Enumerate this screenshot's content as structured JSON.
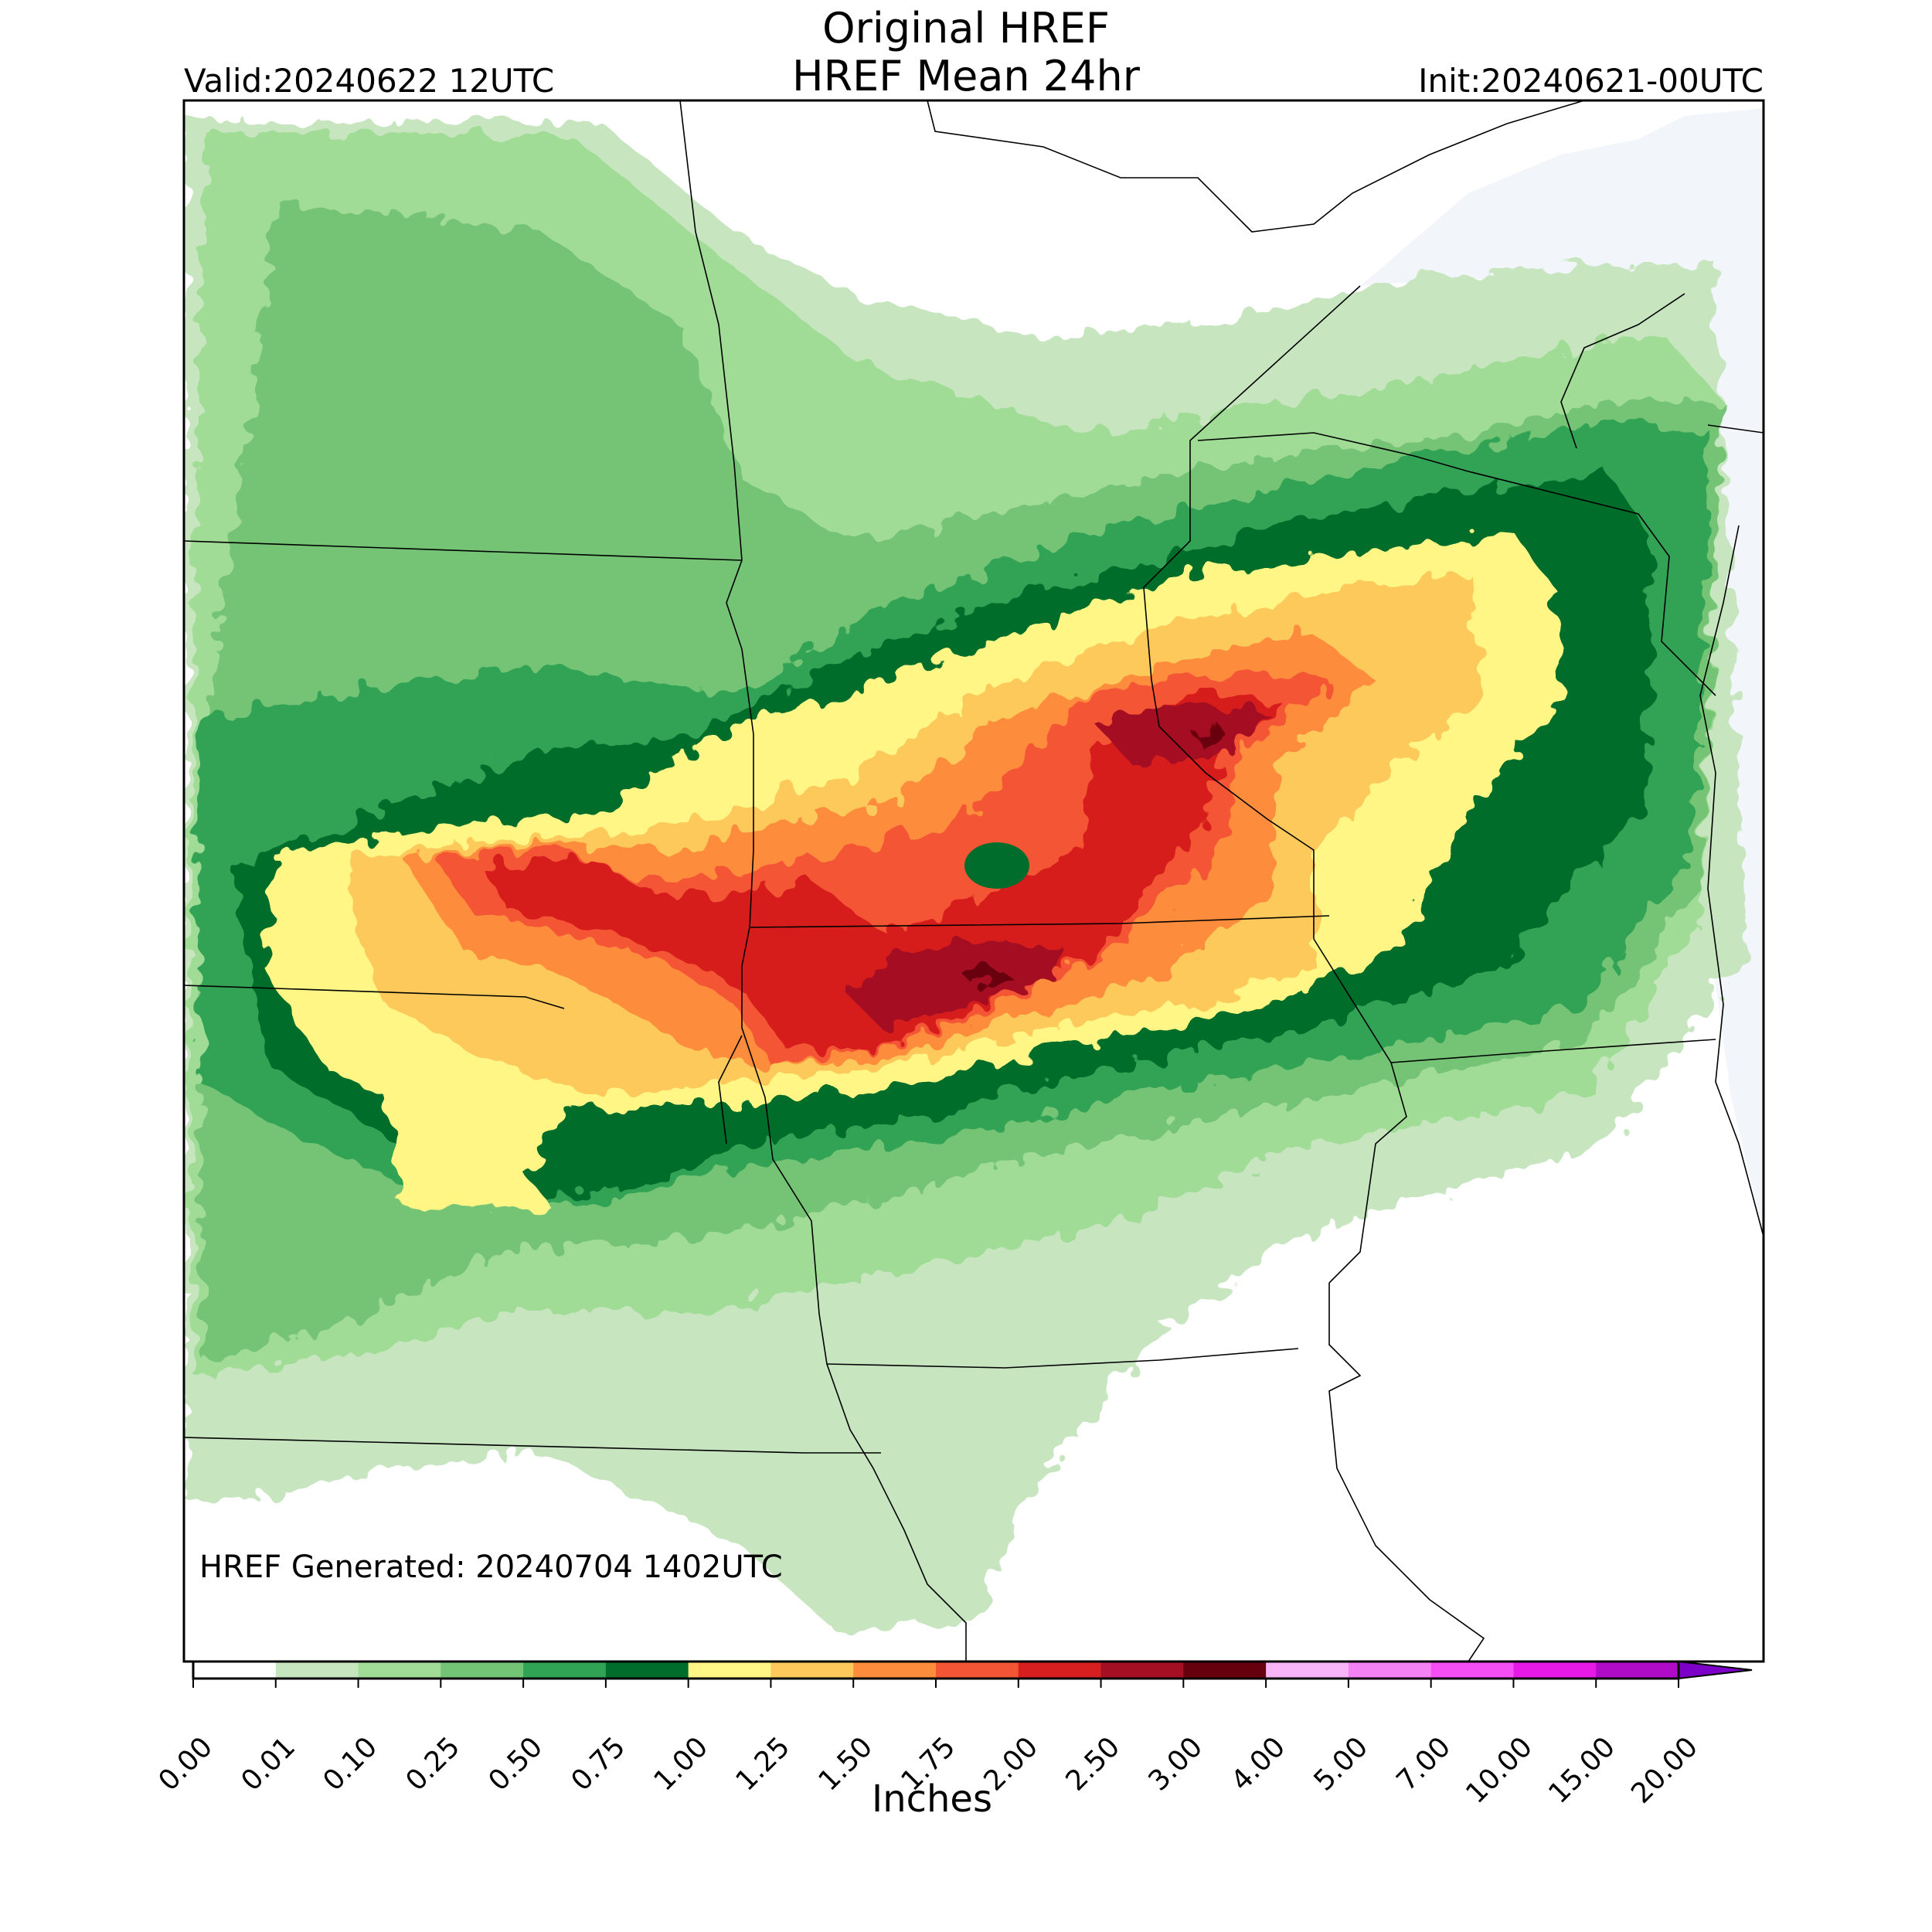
{
  "header": {
    "title_line1": "Original HREF",
    "title_line2": "HREF Mean 24hr",
    "valid": "Valid:20240622 12UTC",
    "init": "Init:20240621-00UTC"
  },
  "footer_note": "HREF Generated: 20240704 1402UTC",
  "colorbar": {
    "label": "Inches",
    "ticks": [
      "0.00",
      "0.01",
      "0.10",
      "0.25",
      "0.50",
      "0.75",
      "1.00",
      "1.25",
      "1.50",
      "1.75",
      "2.00",
      "2.50",
      "3.00",
      "4.00",
      "5.00",
      "7.00",
      "10.00",
      "15.00",
      "20.00"
    ],
    "colors": [
      "#ffffff",
      "#c7e6c0",
      "#a1dc97",
      "#74c476",
      "#31a354",
      "#006d2c",
      "#fff685",
      "#fcc95a",
      "#fd8d3c",
      "#f35535",
      "#d71f1f",
      "#a50f23",
      "#67000d",
      "#f7b4f7",
      "#f582f5",
      "#f54ef5",
      "#e619e6",
      "#b00cc8",
      "#7d00c8"
    ],
    "extend": "max"
  },
  "precip_colors": {
    "c001": "#c7e6c0",
    "c010": "#a1dc97",
    "c025": "#74c476",
    "c050": "#31a354",
    "c075": "#006d2c",
    "c100": "#fff685",
    "c125": "#fcc95a",
    "c150": "#fd8d3c",
    "c175": "#f35535",
    "c200": "#d71f1f",
    "c250": "#a50f23",
    "c300": "#67000d"
  }
}
